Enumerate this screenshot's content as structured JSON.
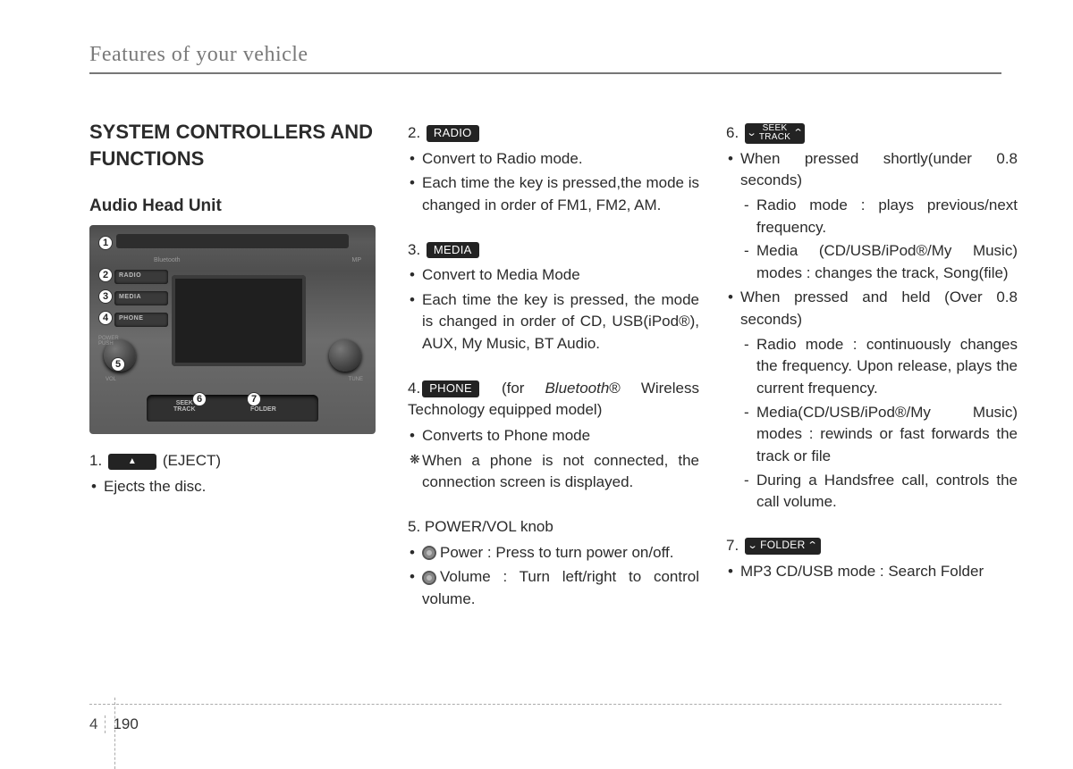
{
  "header": "Features of your vehicle",
  "title": "SYSTEM CONTROLLERS AND FUNCTIONS",
  "subtitle": "Audio Head Unit",
  "radio_image": {
    "badges": [
      "1",
      "2",
      "3",
      "4",
      "5",
      "6",
      "7"
    ],
    "btn_labels": [
      "RADIO",
      "MEDIA",
      "PHONE"
    ],
    "seek_label": "SEEK\nTRACK",
    "folder_label": "FOLDER",
    "bluetooth": "Bluetooth",
    "mp": "MP",
    "power": "POWER\nPUSH",
    "vol": "VOL",
    "tune": "TUNE"
  },
  "col1": {
    "item1_num": "1.",
    "item1_label": "(EJECT)",
    "item1_bullet": "Ejects the disc."
  },
  "col2": {
    "item2_num": "2.",
    "item2_pill": "RADIO",
    "item2_b1": "Convert to Radio mode.",
    "item2_b2": "Each time the key is pressed,the mode is changed in order of FM1, FM2, AM.",
    "item3_num": "3.",
    "item3_pill": "MEDIA",
    "item3_b1": "Convert to Media Mode",
    "item3_b2": "Each time the key is pressed, the mode is changed in order of CD, USB(iPod®), AUX, My Music, BT Audio.",
    "item4_num": "4.",
    "item4_pill": "PHONE",
    "item4_tail_a": "(for ",
    "item4_tail_b": "Bluetooth",
    "item4_tail_c": "® Wireless Technology equipped model)",
    "item4_b1": "Converts to Phone mode",
    "item4_b2": "When a phone is not connected, the connection screen is displayed.",
    "item5_num": "5. POWER/VOL knob",
    "item5_b1": "Power : Press to turn power on/off.",
    "item5_b2": "Volume : Turn left/right to control volume."
  },
  "col3": {
    "item6_num": "6.",
    "item6_pill_top": "SEEK",
    "item6_pill_bot": "TRACK",
    "item6_b1": "When pressed shortly(under 0.8 seconds)",
    "item6_s1": "Radio mode : plays previous/next frequency.",
    "item6_s2": "Media (CD/USB/iPod®/My Music) modes : changes the track, Song(file)",
    "item6_b2": "When pressed and held (Over 0.8 seconds)",
    "item6_s3": "Radio mode : continuously changes the frequency. Upon release, plays the current frequency.",
    "item6_s4": "Media(CD/USB/iPod®/My Music) modes : rewinds or fast forwards the track or file",
    "item6_s5": "During a Handsfree call, controls the call volume.",
    "item7_num": "7.",
    "item7_pill": "FOLDER",
    "item7_b1": "MP3 CD/USB mode : Search Folder"
  },
  "footer": {
    "chapter": "4",
    "page": "190"
  },
  "colors": {
    "text": "#2b2b2b",
    "headerGrey": "#7a7a7a",
    "pillBg": "#232323"
  }
}
